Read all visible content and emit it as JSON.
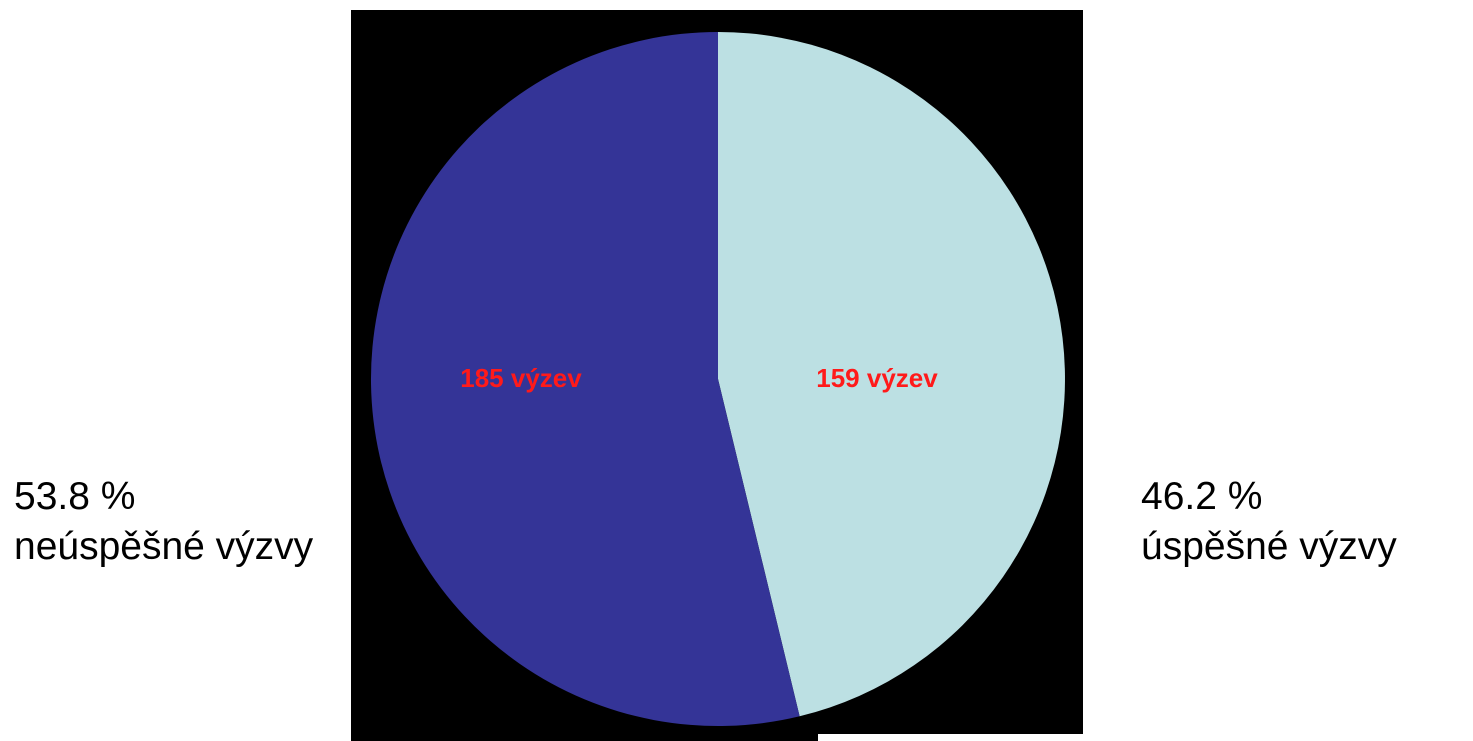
{
  "chart_data": {
    "type": "pie",
    "start_angle_deg": 90,
    "direction": "clockwise",
    "slices": [
      {
        "value": 159,
        "value_label": "159 výzev",
        "percent": 46.2,
        "percent_label": "46.2 %",
        "category": "úspěšné výzvy",
        "color": "#bce0e3"
      },
      {
        "value": 185,
        "value_label": "185 výzev",
        "percent": 53.8,
        "percent_label": "53.8 %",
        "category": "neúspěšné výzvy",
        "color": "#343497"
      }
    ],
    "data_label_color": "#ff1a1a",
    "background_panel_color": "#000000"
  }
}
